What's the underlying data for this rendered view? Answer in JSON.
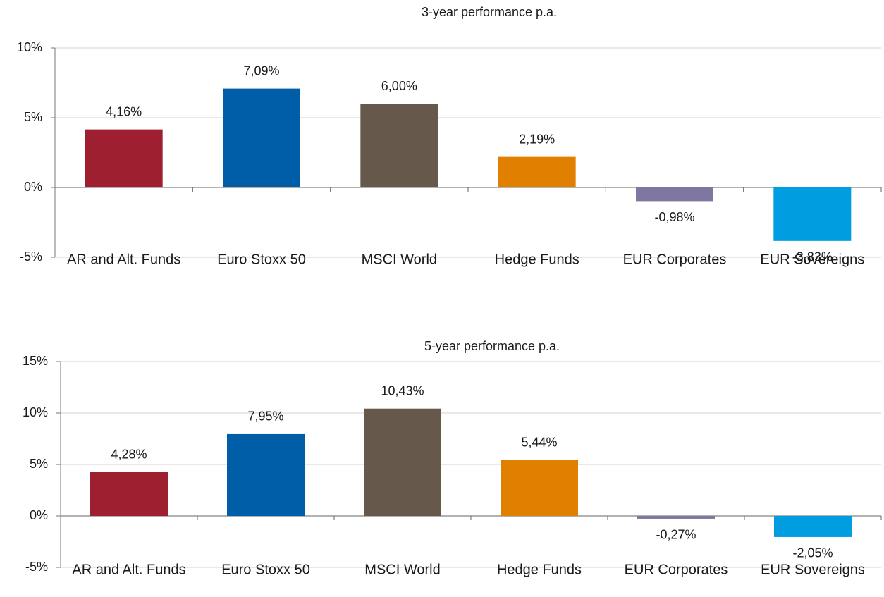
{
  "chart_data": [
    {
      "type": "bar",
      "title": "3-year performance p.a.",
      "categories": [
        "AR and Alt. Funds",
        "Euro Stoxx 50",
        "MSCI World",
        "Hedge Funds",
        "EUR Corporates",
        "EUR Sovereigns"
      ],
      "values": [
        4.16,
        7.09,
        6.0,
        2.19,
        -0.98,
        -3.83
      ],
      "value_labels": [
        "4,16%",
        "7,09%",
        "6,00%",
        "2,19%",
        "-0,98%",
        "-3,83%"
      ],
      "colors": [
        "#9e1f2f",
        "#005ea8",
        "#66594c",
        "#e07f00",
        "#7f77a0",
        "#009ee0"
      ],
      "ylim": [
        -5,
        10
      ],
      "yticks": [
        {
          "value": -5,
          "label": "-5%"
        },
        {
          "value": 0,
          "label": "0%"
        },
        {
          "value": 5,
          "label": "5%"
        },
        {
          "value": 10,
          "label": "10%"
        }
      ],
      "grid": true
    },
    {
      "type": "bar",
      "title": "5-year performance p.a.",
      "categories": [
        "AR and Alt. Funds",
        "Euro Stoxx 50",
        "MSCI World",
        "Hedge Funds",
        "EUR Corporates",
        "EUR Sovereigns"
      ],
      "values": [
        4.28,
        7.95,
        10.43,
        5.44,
        -0.27,
        -2.05
      ],
      "value_labels": [
        "4,28%",
        "7,95%",
        "10,43%",
        "5,44%",
        "-0,27%",
        "-2,05%"
      ],
      "colors": [
        "#9e1f2f",
        "#005ea8",
        "#66594c",
        "#e07f00",
        "#7f77a0",
        "#009ee0"
      ],
      "ylim": [
        -5,
        15
      ],
      "yticks": [
        {
          "value": -5,
          "label": "-5%"
        },
        {
          "value": 0,
          "label": "0%"
        },
        {
          "value": 5,
          "label": "5%"
        },
        {
          "value": 10,
          "label": "10%"
        },
        {
          "value": 15,
          "label": "15%"
        }
      ],
      "grid": true
    }
  ]
}
